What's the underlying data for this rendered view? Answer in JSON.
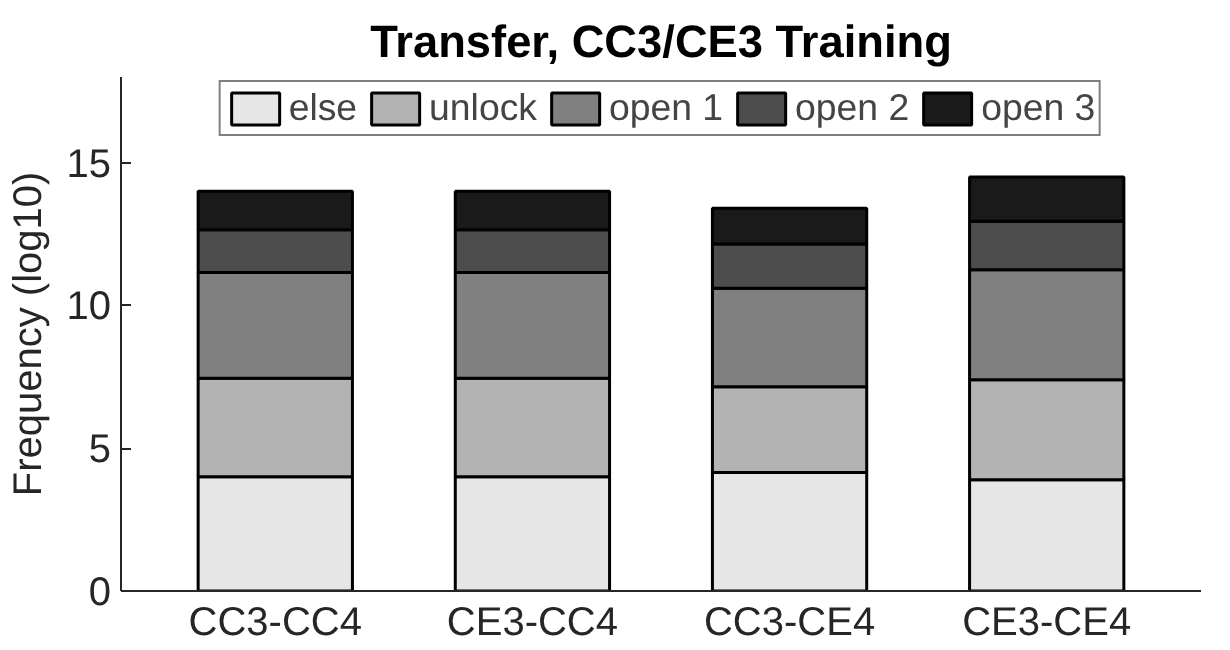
{
  "chart_data": {
    "type": "bar",
    "title": "Transfer, CC3/CE3 Training",
    "ylabel": "Frequency (log10)",
    "categories": [
      "CC3-CC4",
      "CE3-CC4",
      "CC3-CE4",
      "CE3-CE4"
    ],
    "stacked": true,
    "series": [
      {
        "name": "else",
        "color": "#e6e6e6",
        "values": [
          4.0,
          4.0,
          4.15,
          3.9
        ]
      },
      {
        "name": "unlock",
        "color": "#b3b3b3",
        "values": [
          3.45,
          3.45,
          3.0,
          3.5
        ]
      },
      {
        "name": "open 1",
        "color": "#808080",
        "values": [
          3.7,
          3.7,
          3.45,
          3.85
        ]
      },
      {
        "name": "open 2",
        "color": "#4d4d4d",
        "values": [
          1.5,
          1.5,
          1.55,
          1.7
        ]
      },
      {
        "name": "open 3",
        "color": "#1a1a1a",
        "values": [
          1.35,
          1.35,
          1.25,
          1.55
        ]
      }
    ],
    "ylim": [
      0,
      18
    ],
    "yticks": [
      0,
      5,
      10,
      15
    ],
    "legend": "top",
    "grid": false
  }
}
